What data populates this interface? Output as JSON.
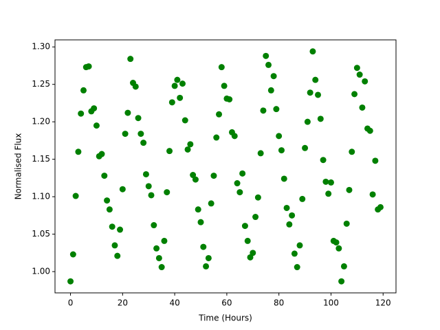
{
  "chart_data": {
    "type": "scatter",
    "xlabel": "Time (Hours)",
    "ylabel": "Normalised Flux",
    "color": "#008000",
    "x": [
      0,
      1,
      2,
      3,
      4,
      5,
      6,
      7,
      8,
      9,
      10,
      11,
      12,
      13,
      14,
      15,
      16,
      17,
      18,
      19,
      20,
      21,
      22,
      23,
      24,
      25,
      26,
      27,
      28,
      29,
      30,
      31,
      32,
      33,
      34,
      35,
      36,
      37,
      38,
      39,
      40,
      41,
      42,
      43,
      44,
      45,
      46,
      47,
      48,
      49,
      50,
      51,
      52,
      53,
      54,
      55,
      56,
      57,
      58,
      59,
      60,
      61,
      62,
      63,
      64,
      65,
      66,
      67,
      68,
      69,
      70,
      71,
      72,
      73,
      74,
      75,
      76,
      77,
      78,
      79,
      80,
      81,
      82,
      83,
      84,
      85,
      86,
      87,
      88,
      89,
      90,
      91,
      92,
      93,
      94,
      95,
      96,
      97,
      98,
      99,
      100,
      101,
      102,
      103,
      104,
      105,
      106,
      107,
      108,
      109,
      110,
      111,
      112,
      113,
      114,
      115,
      116,
      117,
      118,
      119
    ],
    "values": [
      0.987,
      1.023,
      1.101,
      1.16,
      1.211,
      1.242,
      1.273,
      1.274,
      1.214,
      1.218,
      1.195,
      1.154,
      1.157,
      1.128,
      1.095,
      1.083,
      1.06,
      1.035,
      1.021,
      1.056,
      1.11,
      1.184,
      1.212,
      1.284,
      1.252,
      1.247,
      1.205,
      1.184,
      1.172,
      1.13,
      1.114,
      1.102,
      1.062,
      1.031,
      1.018,
      1.006,
      1.041,
      1.106,
      1.161,
      1.226,
      1.248,
      1.256,
      1.232,
      1.251,
      1.202,
      1.163,
      1.17,
      1.129,
      1.123,
      1.083,
      1.066,
      1.033,
      1.007,
      1.018,
      1.091,
      1.128,
      1.179,
      1.21,
      1.273,
      1.248,
      1.231,
      1.23,
      1.186,
      1.181,
      1.118,
      1.106,
      1.131,
      1.061,
      1.041,
      1.019,
      1.025,
      1.073,
      1.099,
      1.158,
      1.215,
      1.288,
      1.276,
      1.242,
      1.261,
      1.217,
      1.181,
      1.162,
      1.124,
      1.085,
      1.063,
      1.075,
      1.024,
      1.006,
      1.035,
      1.097,
      1.165,
      1.2,
      1.239,
      1.294,
      1.256,
      1.236,
      1.204,
      1.149,
      1.12,
      1.104,
      1.119,
      1.041,
      1.039,
      1.031,
      0.987,
      1.007,
      1.064,
      1.109,
      1.16,
      1.237,
      1.272,
      1.263,
      1.219,
      1.254,
      1.191,
      1.188,
      1.103,
      1.148,
      1.083,
      1.086
    ],
    "xlim": [
      -5.95,
      124.95
    ],
    "xticks": [
      0,
      20,
      40,
      60,
      80,
      100,
      120
    ],
    "ylim": [
      0.9716,
      1.3094
    ],
    "yticks": [
      {
        "value": 1.0,
        "label": "1.00"
      },
      {
        "value": 1.05,
        "label": "1.05"
      },
      {
        "value": 1.1,
        "label": "1.10"
      },
      {
        "value": 1.15,
        "label": "1.15"
      },
      {
        "value": 1.2,
        "label": "1.20"
      },
      {
        "value": 1.25,
        "label": "1.25"
      },
      {
        "value": 1.3,
        "label": "1.30"
      }
    ]
  }
}
